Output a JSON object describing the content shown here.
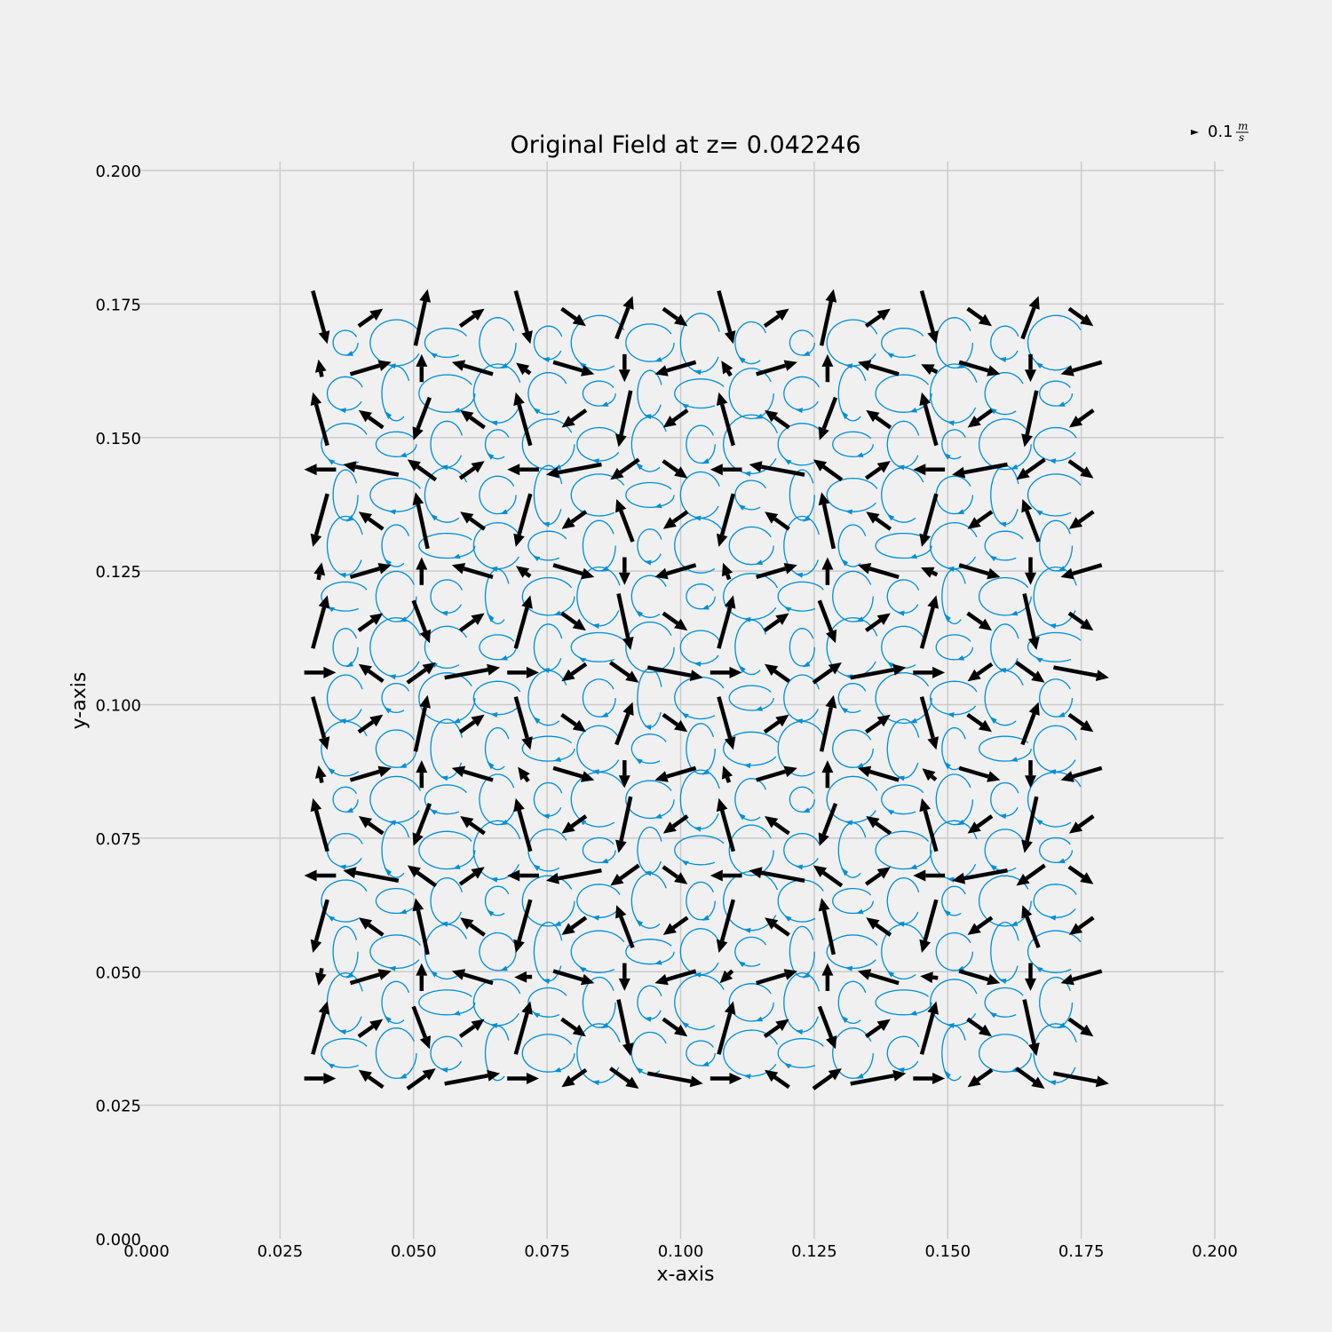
{
  "chart_data": {
    "type": "quiver+streamplot",
    "title": "Original Field at z= 0.042246",
    "xlabel": "x-axis",
    "ylabel": "y-axis",
    "xlim": [
      0.0,
      0.2
    ],
    "ylim": [
      0.0,
      0.2
    ],
    "xticks": [
      "0.000",
      "0.025",
      "0.050",
      "0.075",
      "0.100",
      "0.125",
      "0.150",
      "0.175",
      "0.200"
    ],
    "yticks": [
      "0.000",
      "0.025",
      "0.050",
      "0.075",
      "0.100",
      "0.125",
      "0.150",
      "0.175",
      "0.200"
    ],
    "grid": true,
    "quiver_key": {
      "value": "0.1",
      "unit_num": "m",
      "unit_den": "s"
    },
    "quiver_grid": {
      "x": [
        0.0325,
        0.042,
        0.0515,
        0.061,
        0.0705,
        0.08,
        0.0895,
        0.099,
        0.1085,
        0.118,
        0.1275,
        0.137,
        0.1465,
        0.156,
        0.1655,
        0.175
      ],
      "y": [
        0.1725,
        0.163,
        0.1535,
        0.144,
        0.1345,
        0.125,
        0.1155,
        0.106,
        0.0965,
        0.087,
        0.0775,
        0.068,
        0.0585,
        0.049,
        0.0395,
        0.03
      ]
    },
    "streamline_color": "#008fd5",
    "arrow_color": "#000000",
    "background_color": "#f0f0f0"
  }
}
